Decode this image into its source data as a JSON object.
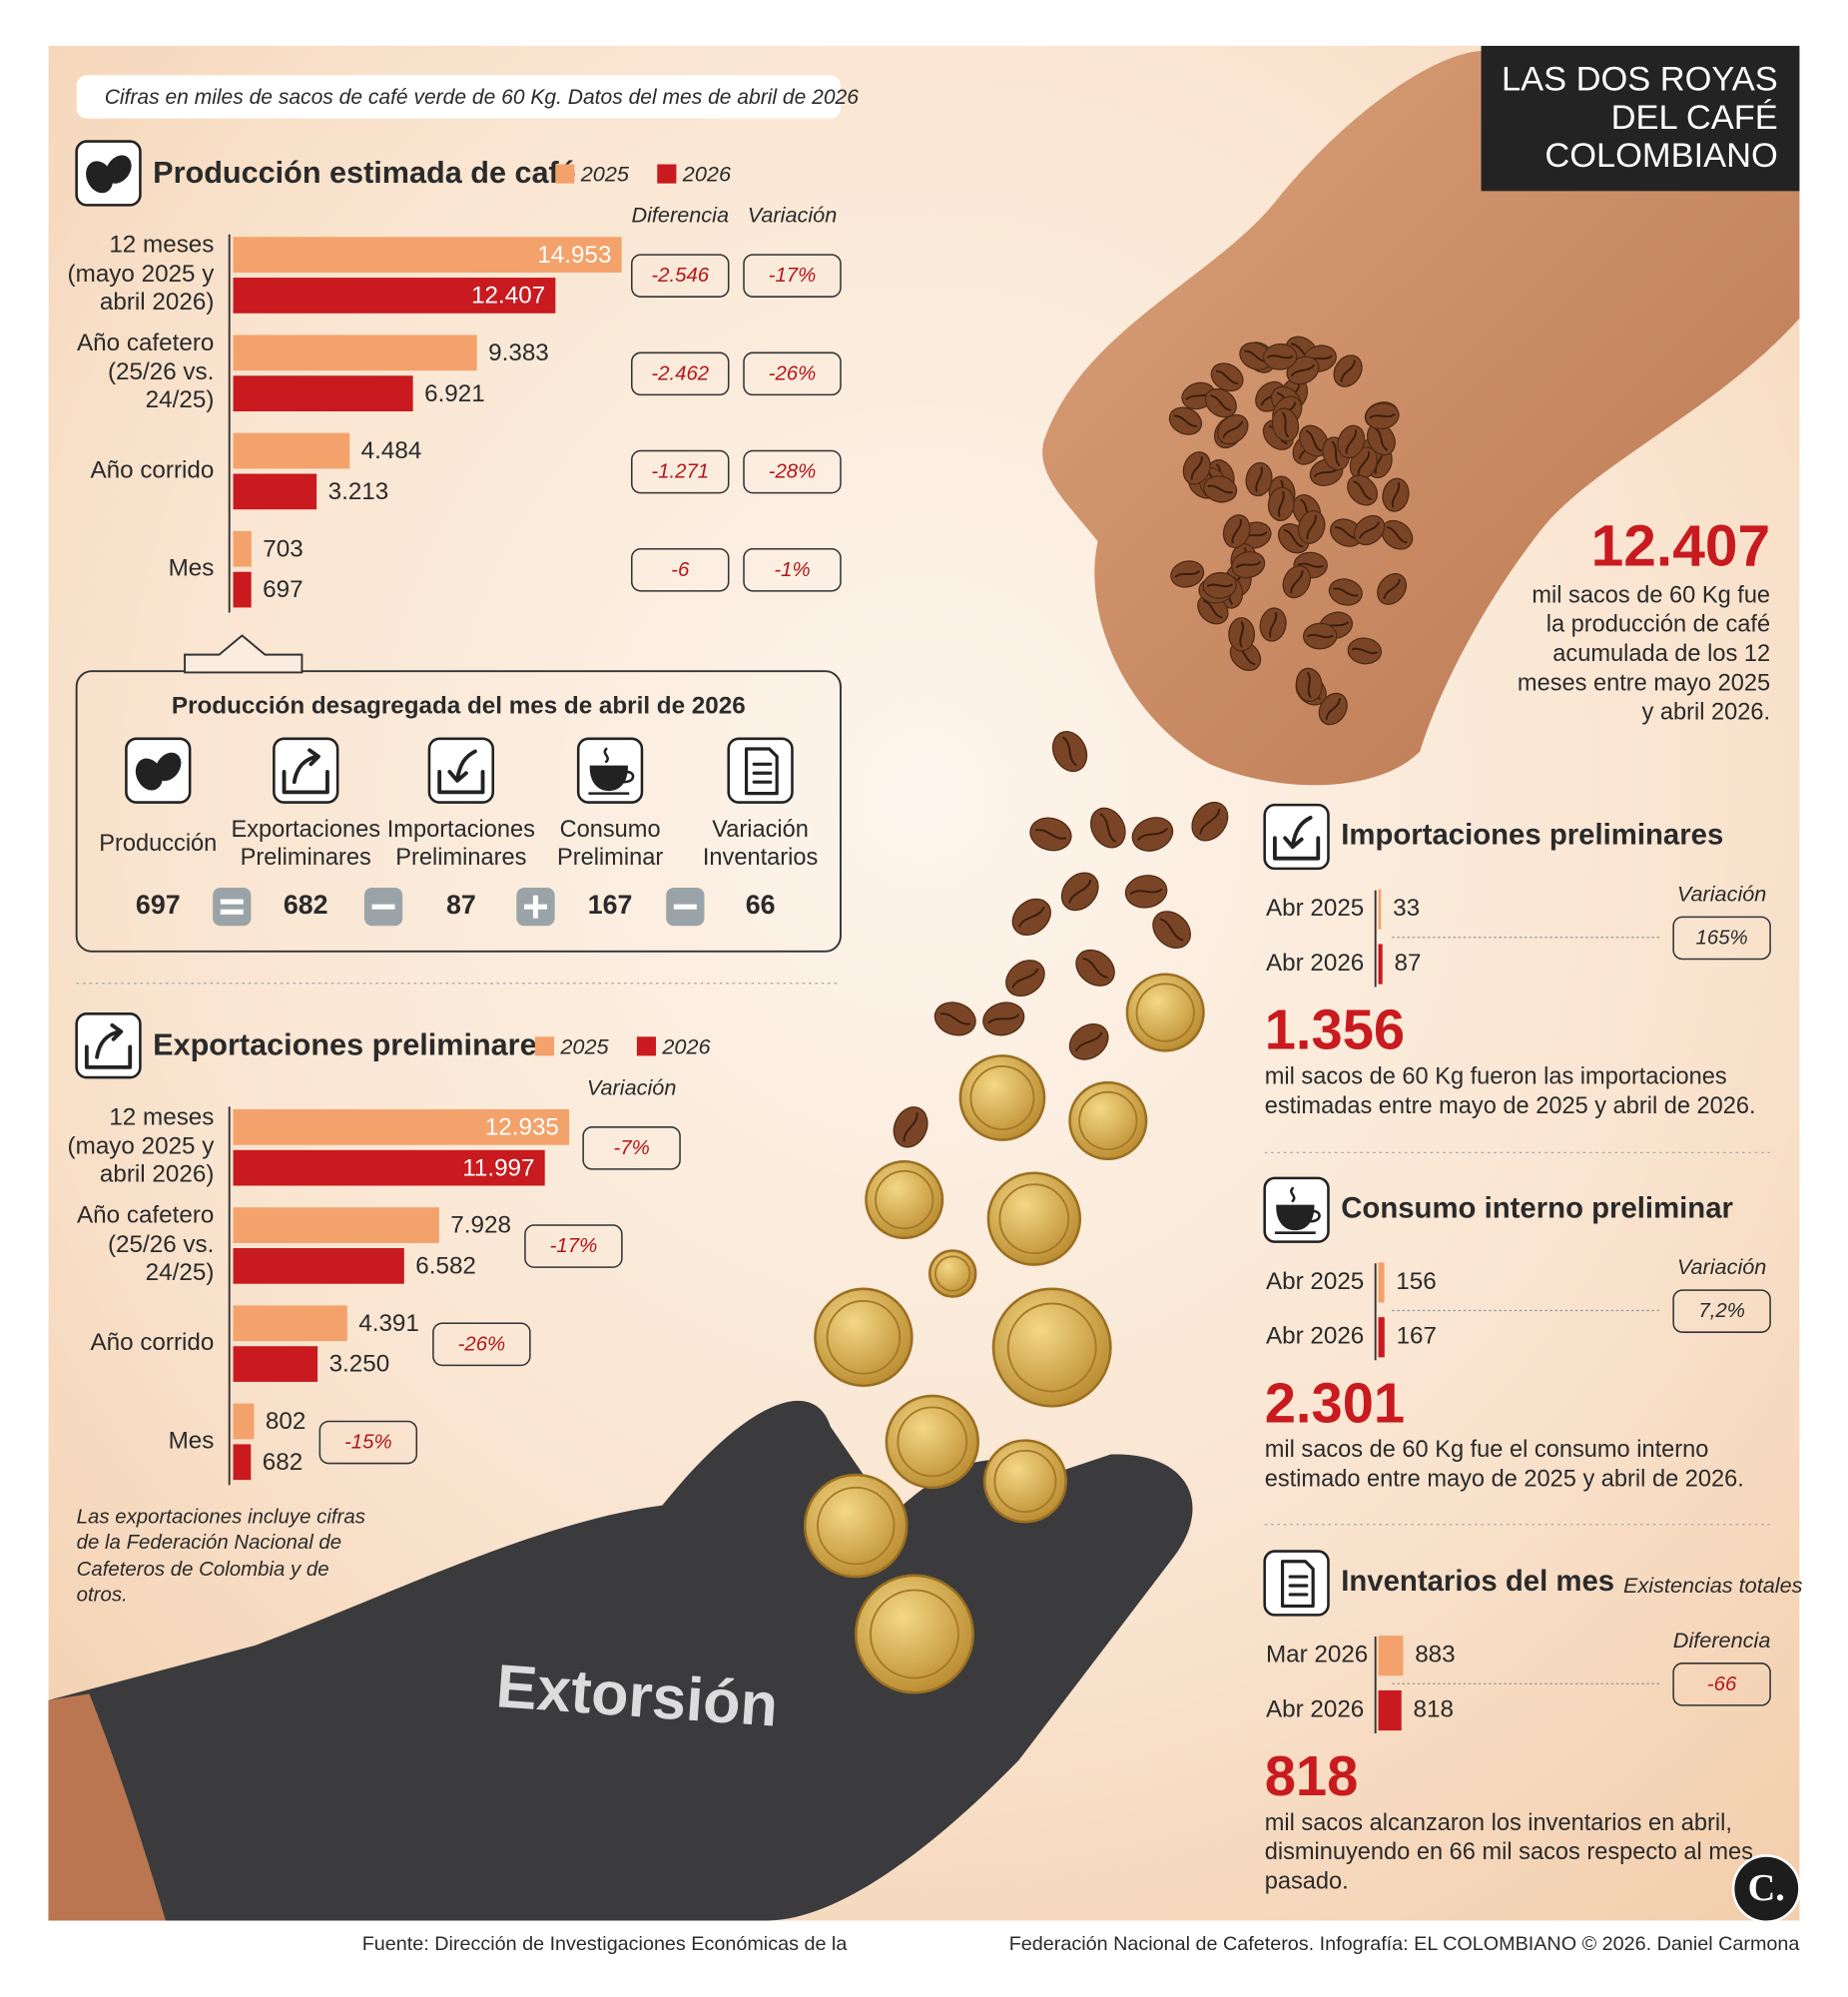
{
  "header": {
    "title": [
      "LAS DOS ROYAS",
      "DEL CAFÉ",
      "COLOMBIANO"
    ],
    "note": "Cifras en miles de sacos de café verde de 60 Kg. Datos del mes de abril de 2026"
  },
  "chart_data": [
    {
      "type": "bar",
      "title": "Producción estimada de café",
      "categories": [
        "12 meses (mayo 2025 y abril 2026)",
        "Año cafetero (25/26 vs. 24/25)",
        "Año corrido",
        "Mes"
      ],
      "series": [
        {
          "name": "2025",
          "color": "#f4a26b",
          "values": [
            14953,
            9383,
            4484,
            703
          ],
          "value_labels": [
            "14.953",
            "9.383",
            "4.484",
            "703"
          ]
        },
        {
          "name": "2026",
          "color": "#c81a1f",
          "values": [
            12407,
            6921,
            3213,
            697
          ],
          "value_labels": [
            "12.407",
            "6.921",
            "3.213",
            "697"
          ]
        }
      ],
      "comparisons": [
        {
          "name": "Diferencia",
          "values": [
            -2546,
            -2462,
            -1271,
            -6
          ],
          "value_labels": [
            "-2.546",
            "-2.462",
            "-1.271",
            "-6"
          ]
        },
        {
          "name": "Variación",
          "values": [
            -17,
            -26,
            -28,
            -1
          ],
          "value_labels": [
            "-17%",
            "-26%",
            "-28%",
            "-1%"
          ]
        }
      ]
    },
    {
      "type": "bar",
      "title": "Exportaciones preliminares",
      "categories": [
        "12 meses (mayo 2025 y abril 2026)",
        "Año cafetero (25/26 vs. 24/25)",
        "Año corrido",
        "Mes"
      ],
      "series": [
        {
          "name": "2025",
          "color": "#f4a26b",
          "values": [
            12935,
            7928,
            4391,
            802
          ],
          "value_labels": [
            "12.935",
            "7.928",
            "4.391",
            "802"
          ]
        },
        {
          "name": "2026",
          "color": "#c81a1f",
          "values": [
            11997,
            6582,
            3250,
            682
          ],
          "value_labels": [
            "11.997",
            "6.582",
            "3.250",
            "682"
          ]
        }
      ],
      "comparisons": [
        {
          "name": "Variación",
          "values": [
            -7,
            -17,
            -26,
            -15
          ],
          "value_labels": [
            "-7%",
            "-17%",
            "-26%",
            "-15%"
          ]
        }
      ],
      "note": "Las exportaciones incluye cifras de la Federación Nacional de Cafeteros de Colombia y de otros."
    },
    {
      "type": "bar",
      "title": "Importaciones preliminares",
      "categories": [
        "Abr 2025",
        "Abr 2026"
      ],
      "values": [
        33,
        87
      ],
      "colors": [
        "#f4a26b",
        "#c81a1f"
      ],
      "comparison": {
        "name": "Variación",
        "value": 165,
        "label": "165%"
      },
      "total": "1.356",
      "total_text": "mil sacos de 60 Kg fueron las importaciones estimadas entre mayo de 2025 y abril de 2026."
    },
    {
      "type": "bar",
      "title": "Consumo interno preliminar",
      "categories": [
        "Abr 2025",
        "Abr 2026"
      ],
      "values": [
        156,
        167
      ],
      "colors": [
        "#f4a26b",
        "#c81a1f"
      ],
      "comparison": {
        "name": "Variación",
        "value": 7.2,
        "label": "7,2%"
      },
      "total": "2.301",
      "total_text": "mil sacos de 60 Kg fue el consumo interno estimado entre mayo de 2025 y abril de 2026."
    },
    {
      "type": "bar",
      "title": "Inventarios del mes",
      "subtitle": "Existencias totales",
      "categories": [
        "Mar 2026",
        "Abr 2026"
      ],
      "values": [
        883,
        818
      ],
      "colors": [
        "#f4a26b",
        "#c81a1f"
      ],
      "comparison": {
        "name": "Diferencia",
        "value": -66,
        "label": "-66"
      },
      "total": "818",
      "total_text": "mil sacos alcanzaron los inventarios en abril, disminuyendo en 66 mil sacos respecto al mes pasado."
    }
  ],
  "highlight": {
    "value": "12.407",
    "text": "mil sacos de 60 Kg fue la producción de café acumulada de los 12 meses entre mayo 2025 y abril 2026."
  },
  "breakdown": {
    "title": "Producción desagregada del mes de abril de 2026",
    "items": [
      {
        "label": "Producción",
        "value": 697
      },
      {
        "label": "Exportaciones Preliminares",
        "value": 682
      },
      {
        "label": "Importaciones Preliminares",
        "value": 87
      },
      {
        "label": "Consumo Preliminar",
        "value": 167
      },
      {
        "label": "Variación Inventarios",
        "value": 66
      }
    ]
  },
  "glove_text": "Extorsión",
  "footer": {
    "source": "Fuente: Dirección de Investigaciones Económicas de la",
    "credit": "Federación Nacional de Cafeteros. Infografía: EL COLOMBIANO © 2026. Daniel Carmona",
    "logo": "C."
  }
}
